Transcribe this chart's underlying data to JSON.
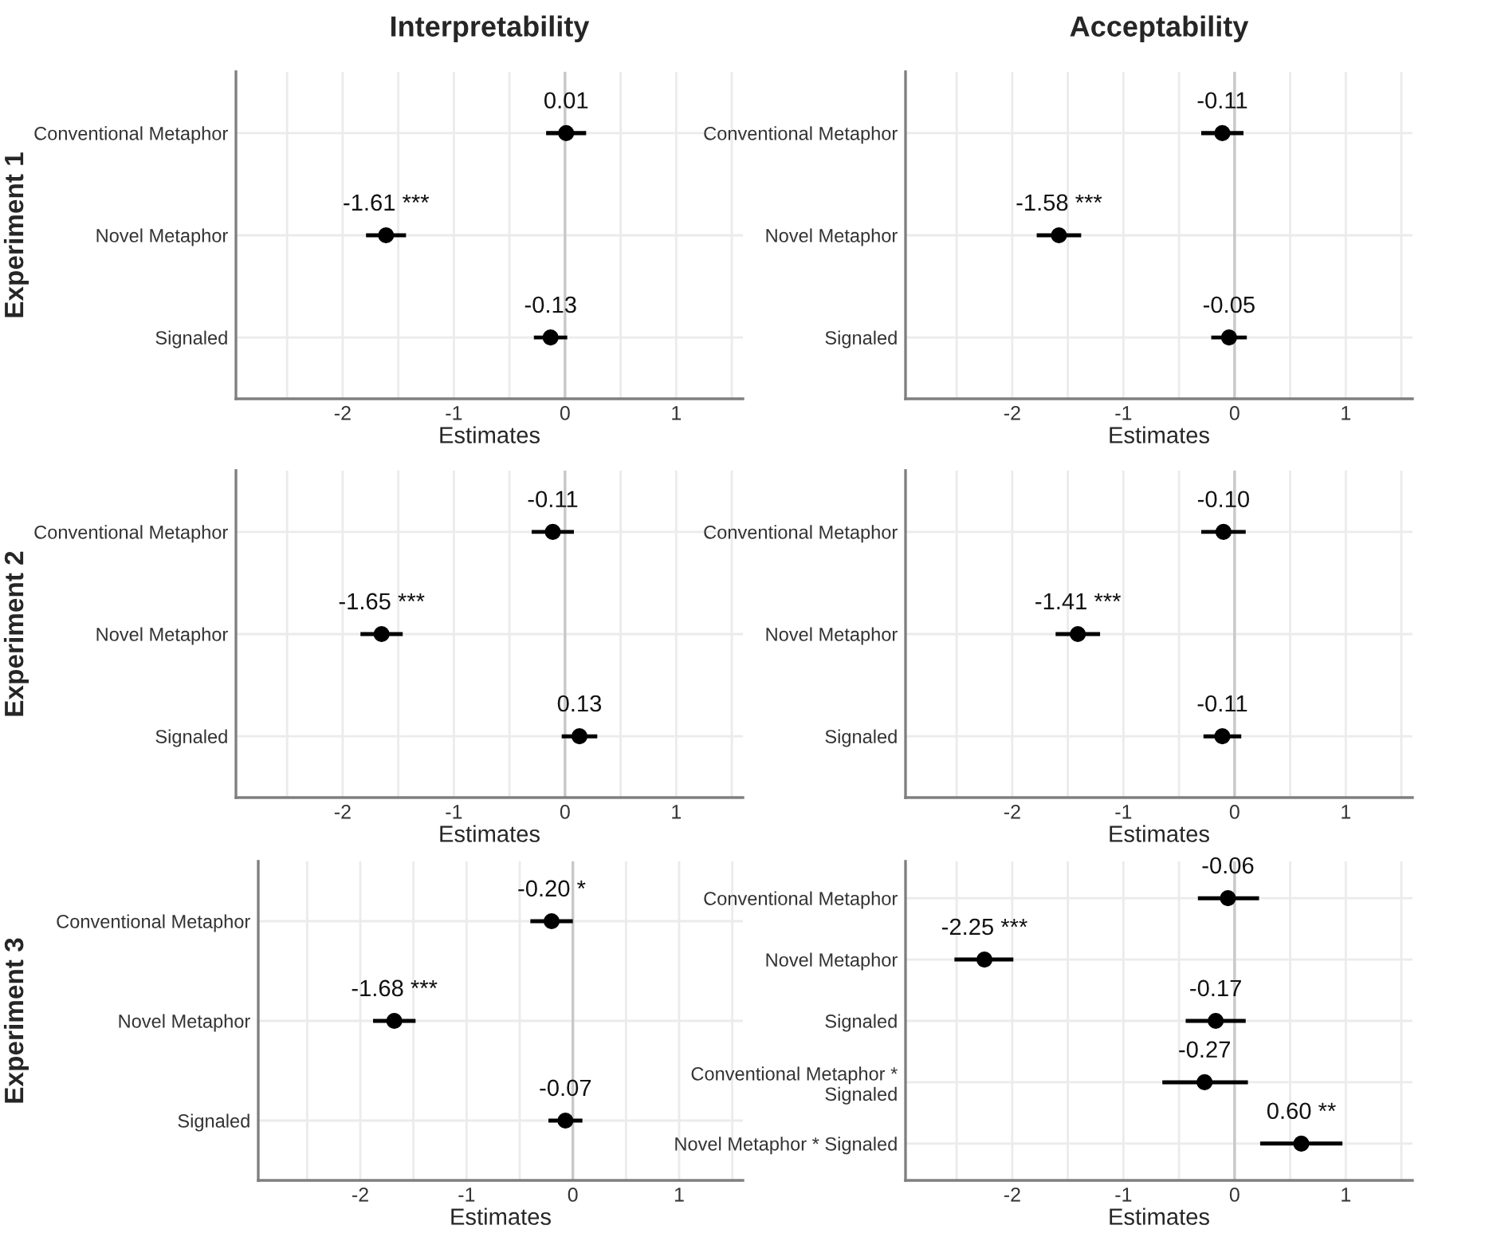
{
  "chart_data": [
    {
      "type": "scatter",
      "orientation": "horizontal",
      "title": "Interpretability",
      "ylabel": "Experiment 1",
      "xlabel": "Estimates",
      "categories": [
        "Conventional Metaphor",
        "Novel Metaphor",
        "Signaled"
      ],
      "values": [
        0.01,
        -1.61,
        -0.13
      ],
      "errors": [
        0.18,
        0.18,
        0.15
      ],
      "value_labels": [
        "0.01",
        "-1.61 ***",
        "-0.13"
      ],
      "color": "#000000",
      "marker": "circle",
      "xlim": [
        -2.96,
        1.6
      ],
      "xticks": [
        {
          "value": -2.5,
          "label": null
        },
        -2,
        {
          "value": -1.5,
          "label": null
        },
        -1,
        {
          "value": -0.5,
          "label": null
        },
        0,
        {
          "value": 0.5,
          "label": null
        },
        1,
        {
          "value": 1.5,
          "label": null
        }
      ],
      "ref_lines": [
        {
          "axis": "x",
          "value": 0,
          "color": "#c8c8c8"
        }
      ],
      "grid": true
    },
    {
      "type": "scatter",
      "orientation": "horizontal",
      "title": "Acceptability",
      "xlabel": "Estimates",
      "categories": [
        "Conventional Metaphor",
        "Novel Metaphor",
        "Signaled"
      ],
      "values": [
        -0.11,
        -1.58,
        -0.05
      ],
      "errors": [
        0.19,
        0.2,
        0.16
      ],
      "value_labels": [
        "-0.11",
        "-1.58 ***",
        "-0.05"
      ],
      "color": "#000000",
      "marker": "circle",
      "xlim": [
        -2.96,
        1.6
      ],
      "xticks": [
        {
          "value": -2.5,
          "label": null
        },
        -2,
        {
          "value": -1.5,
          "label": null
        },
        -1,
        {
          "value": -0.5,
          "label": null
        },
        0,
        {
          "value": 0.5,
          "label": null
        },
        1,
        {
          "value": 1.5,
          "label": null
        }
      ],
      "ref_lines": [
        {
          "axis": "x",
          "value": 0,
          "color": "#c8c8c8"
        }
      ],
      "grid": true
    },
    {
      "type": "scatter",
      "orientation": "horizontal",
      "ylabel": "Experiment 2",
      "xlabel": "Estimates",
      "categories": [
        "Conventional Metaphor",
        "Novel Metaphor",
        "Signaled"
      ],
      "values": [
        -0.11,
        -1.65,
        0.13
      ],
      "errors": [
        0.19,
        0.19,
        0.16
      ],
      "value_labels": [
        "-0.11",
        "-1.65 ***",
        "0.13"
      ],
      "color": "#000000",
      "marker": "circle",
      "xlim": [
        -2.96,
        1.6
      ],
      "xticks": [
        {
          "value": -2.5,
          "label": null
        },
        -2,
        {
          "value": -1.5,
          "label": null
        },
        -1,
        {
          "value": -0.5,
          "label": null
        },
        0,
        {
          "value": 0.5,
          "label": null
        },
        1,
        {
          "value": 1.5,
          "label": null
        }
      ],
      "ref_lines": [
        {
          "axis": "x",
          "value": 0,
          "color": "#c8c8c8"
        }
      ],
      "grid": true
    },
    {
      "type": "scatter",
      "orientation": "horizontal",
      "xlabel": "Estimates",
      "categories": [
        "Conventional Metaphor",
        "Novel Metaphor",
        "Signaled"
      ],
      "values": [
        -0.1,
        -1.41,
        -0.11
      ],
      "errors": [
        0.2,
        0.2,
        0.17
      ],
      "value_labels": [
        "-0.10",
        "-1.41 ***",
        "-0.11"
      ],
      "color": "#000000",
      "marker": "circle",
      "xlim": [
        -2.96,
        1.6
      ],
      "xticks": [
        {
          "value": -2.5,
          "label": null
        },
        -2,
        {
          "value": -1.5,
          "label": null
        },
        -1,
        {
          "value": -0.5,
          "label": null
        },
        0,
        {
          "value": 0.5,
          "label": null
        },
        1,
        {
          "value": 1.5,
          "label": null
        }
      ],
      "ref_lines": [
        {
          "axis": "x",
          "value": 0,
          "color": "#c8c8c8"
        }
      ],
      "grid": true
    },
    {
      "type": "scatter",
      "orientation": "horizontal",
      "ylabel": "Experiment 3",
      "xlabel": "Estimates",
      "categories": [
        "Conventional Metaphor",
        "Novel Metaphor",
        "Signaled"
      ],
      "values": [
        -0.2,
        -1.68,
        -0.07
      ],
      "errors": [
        0.2,
        0.2,
        0.16
      ],
      "value_labels": [
        "-0.20 *",
        "-1.68 ***",
        "-0.07"
      ],
      "color": "#000000",
      "marker": "circle",
      "xlim": [
        -2.96,
        1.6
      ],
      "xticks": [
        {
          "value": -2.5,
          "label": null
        },
        -2,
        {
          "value": -1.5,
          "label": null
        },
        -1,
        {
          "value": -0.5,
          "label": null
        },
        0,
        {
          "value": 0.5,
          "label": null
        },
        1,
        {
          "value": 1.5,
          "label": null
        }
      ],
      "ref_lines": [
        {
          "axis": "x",
          "value": 0,
          "color": "#c8c8c8"
        }
      ],
      "grid": true
    },
    {
      "type": "scatter",
      "orientation": "horizontal",
      "xlabel": "Estimates",
      "categories": [
        "Conventional Metaphor",
        "Novel Metaphor",
        "Signaled",
        "Conventional Metaphor *\nSignaled",
        "Novel Metaphor * Signaled"
      ],
      "values": [
        -0.06,
        -2.25,
        -0.17,
        -0.27,
        0.6
      ],
      "errors": [
        [
          -0.33,
          0.22
        ],
        [
          -2.52,
          -1.99
        ],
        [
          -0.44,
          0.1
        ],
        [
          -0.65,
          0.12
        ],
        [
          0.23,
          0.97
        ]
      ],
      "value_labels": [
        "-0.06",
        "-2.25 ***",
        "-0.17",
        "-0.27",
        "0.60 **"
      ],
      "color": "#000000",
      "marker": "circle",
      "xlim": [
        -2.96,
        1.6
      ],
      "xticks": [
        {
          "value": -2.5,
          "label": null
        },
        -2,
        {
          "value": -1.5,
          "label": null
        },
        -1,
        {
          "value": -0.5,
          "label": null
        },
        0,
        {
          "value": 0.5,
          "label": null
        },
        1,
        {
          "value": 1.5,
          "label": null
        }
      ],
      "ref_lines": [
        {
          "axis": "x",
          "value": 0,
          "color": "#c8c8c8"
        }
      ],
      "grid": true
    }
  ]
}
